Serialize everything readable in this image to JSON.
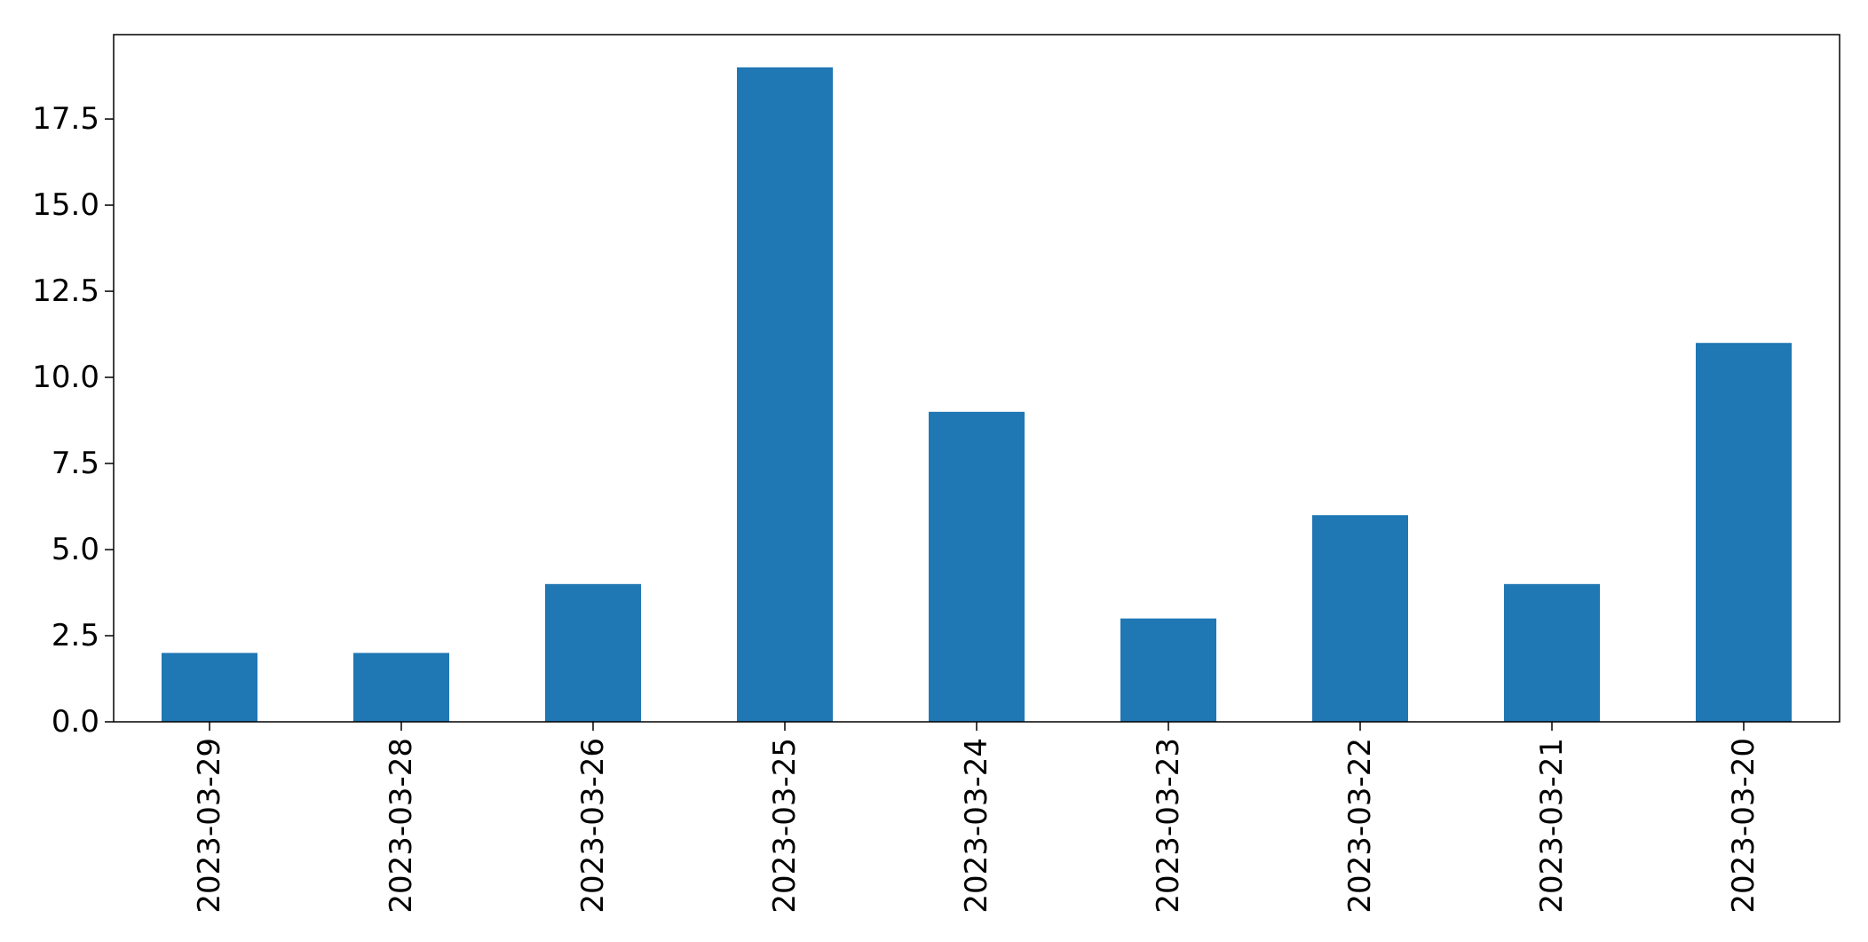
{
  "chart_data": {
    "type": "bar",
    "categories": [
      "2023-03-29",
      "2023-03-28",
      "2023-03-26",
      "2023-03-25",
      "2023-03-24",
      "2023-03-23",
      "2023-03-22",
      "2023-03-21",
      "2023-03-20"
    ],
    "values": [
      2,
      2,
      4,
      19,
      9,
      3,
      6,
      4,
      11
    ],
    "title": "",
    "xlabel": "",
    "ylabel": "",
    "ylim": [
      0,
      19.95
    ],
    "yticks": [
      "0.0",
      "2.5",
      "5.0",
      "7.5",
      "10.0",
      "12.5",
      "15.0",
      "17.5"
    ],
    "grid": false,
    "legend": "none",
    "bar_color": "#1f77b4"
  }
}
